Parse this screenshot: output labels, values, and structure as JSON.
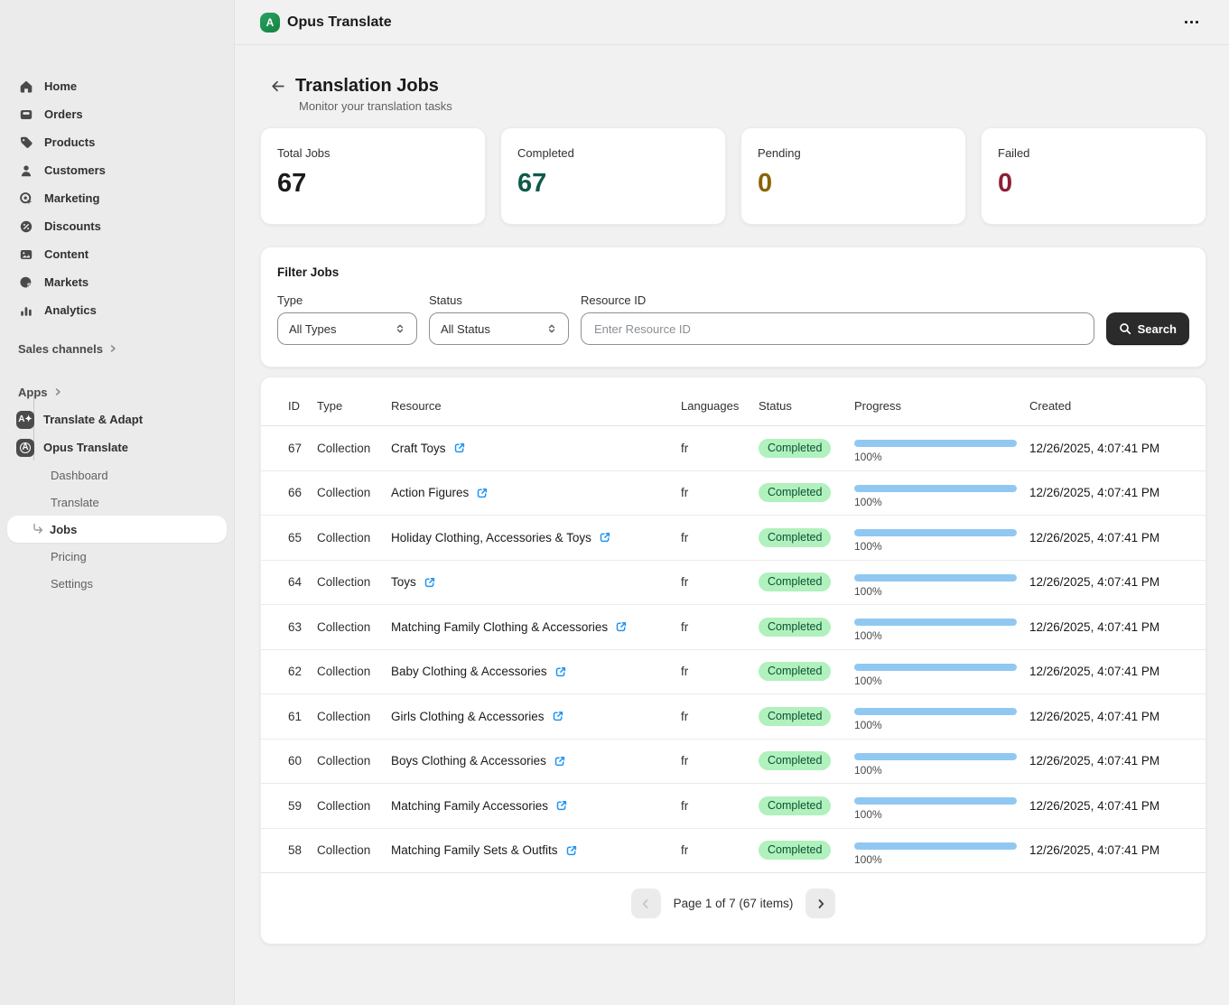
{
  "topbar": {
    "app_title": "Opus Translate"
  },
  "sidebar": {
    "items": [
      {
        "label": "Home",
        "icon": "home-icon"
      },
      {
        "label": "Orders",
        "icon": "orders-icon"
      },
      {
        "label": "Products",
        "icon": "products-icon"
      },
      {
        "label": "Customers",
        "icon": "customers-icon"
      },
      {
        "label": "Marketing",
        "icon": "marketing-icon"
      },
      {
        "label": "Discounts",
        "icon": "discounts-icon"
      },
      {
        "label": "Content",
        "icon": "content-icon"
      },
      {
        "label": "Markets",
        "icon": "markets-icon"
      },
      {
        "label": "Analytics",
        "icon": "analytics-icon"
      }
    ],
    "sales_channels_label": "Sales channels",
    "apps_label": "Apps",
    "app_items": [
      {
        "label": "Translate & Adapt"
      },
      {
        "label": "Opus Translate"
      }
    ],
    "sub_items": [
      {
        "label": "Dashboard"
      },
      {
        "label": "Translate"
      },
      {
        "label": "Jobs",
        "active": true
      },
      {
        "label": "Pricing"
      },
      {
        "label": "Settings"
      }
    ]
  },
  "page": {
    "title": "Translation Jobs",
    "subtitle": "Monitor your translation tasks"
  },
  "stats": [
    {
      "label": "Total Jobs",
      "value": "67",
      "color": "#1a1a1a"
    },
    {
      "label": "Completed",
      "value": "67",
      "color": "#0e5a4a"
    },
    {
      "label": "Pending",
      "value": "0",
      "color": "#8a6400"
    },
    {
      "label": "Failed",
      "value": "0",
      "color": "#8b2035"
    }
  ],
  "filter": {
    "title": "Filter Jobs",
    "type_label": "Type",
    "type_value": "All Types",
    "status_label": "Status",
    "status_value": "All Status",
    "resource_label": "Resource ID",
    "resource_placeholder": "Enter Resource ID",
    "search_label": "Search"
  },
  "table": {
    "columns": [
      "ID",
      "Type",
      "Resource",
      "Languages",
      "Status",
      "Progress",
      "Created"
    ],
    "rows": [
      {
        "id": "67",
        "type": "Collection",
        "resource": "Craft Toys",
        "languages": "fr",
        "status": "Completed",
        "progress": "100%",
        "progress_pct": 100,
        "created": "12/26/2025, 4:07:41 PM"
      },
      {
        "id": "66",
        "type": "Collection",
        "resource": "Action Figures",
        "languages": "fr",
        "status": "Completed",
        "progress": "100%",
        "progress_pct": 100,
        "created": "12/26/2025, 4:07:41 PM"
      },
      {
        "id": "65",
        "type": "Collection",
        "resource": "Holiday Clothing, Accessories & Toys",
        "languages": "fr",
        "status": "Completed",
        "progress": "100%",
        "progress_pct": 100,
        "created": "12/26/2025, 4:07:41 PM"
      },
      {
        "id": "64",
        "type": "Collection",
        "resource": "Toys",
        "languages": "fr",
        "status": "Completed",
        "progress": "100%",
        "progress_pct": 100,
        "created": "12/26/2025, 4:07:41 PM"
      },
      {
        "id": "63",
        "type": "Collection",
        "resource": "Matching Family Clothing & Accessories",
        "languages": "fr",
        "status": "Completed",
        "progress": "100%",
        "progress_pct": 100,
        "created": "12/26/2025, 4:07:41 PM"
      },
      {
        "id": "62",
        "type": "Collection",
        "resource": "Baby Clothing & Accessories",
        "languages": "fr",
        "status": "Completed",
        "progress": "100%",
        "progress_pct": 100,
        "created": "12/26/2025, 4:07:41 PM"
      },
      {
        "id": "61",
        "type": "Collection",
        "resource": "Girls Clothing & Accessories",
        "languages": "fr",
        "status": "Completed",
        "progress": "100%",
        "progress_pct": 100,
        "created": "12/26/2025, 4:07:41 PM"
      },
      {
        "id": "60",
        "type": "Collection",
        "resource": "Boys Clothing & Accessories",
        "languages": "fr",
        "status": "Completed",
        "progress": "100%",
        "progress_pct": 100,
        "created": "12/26/2025, 4:07:41 PM"
      },
      {
        "id": "59",
        "type": "Collection",
        "resource": "Matching Family Accessories",
        "languages": "fr",
        "status": "Completed",
        "progress": "100%",
        "progress_pct": 100,
        "created": "12/26/2025, 4:07:41 PM"
      },
      {
        "id": "58",
        "type": "Collection",
        "resource": "Matching Family Sets & Outfits",
        "languages": "fr",
        "status": "Completed",
        "progress": "100%",
        "progress_pct": 100,
        "created": "12/26/2025, 4:07:41 PM"
      }
    ]
  },
  "pagination": {
    "label": "Page 1 of 7 (67 items)"
  }
}
